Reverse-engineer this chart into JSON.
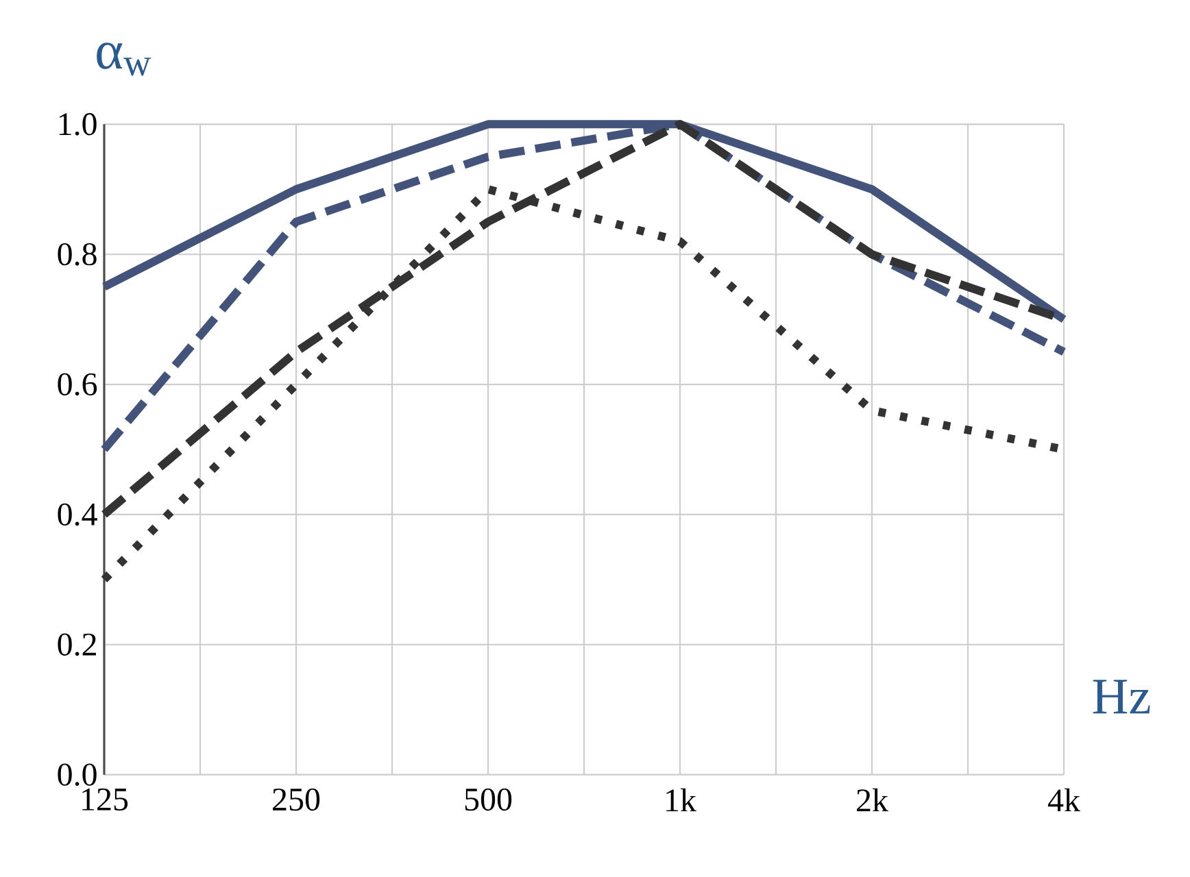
{
  "chart_data": {
    "type": "line",
    "xlabel": "Hz",
    "ylabel": "α$_{w}$",
    "categories": [
      "125",
      "250",
      "500",
      "1k",
      "2k",
      "4k"
    ],
    "series": [
      {
        "color": "#44537a",
        "line_style": "solid",
        "values": [
          0.75,
          0.9,
          1.0,
          1.0,
          0.9,
          0.7
        ]
      },
      {
        "color": "#44537a",
        "line_style": "dashed",
        "values": [
          0.5,
          0.85,
          0.95,
          1.0,
          0.8,
          0.65
        ]
      },
      {
        "color": "#333333",
        "line_style": "dashed",
        "values": [
          0.4,
          0.65,
          0.85,
          1.0,
          0.8,
          0.7
        ]
      },
      {
        "color": "#333333",
        "line_style": "dotted",
        "values": [
          0.3,
          0.6,
          0.9,
          0.82,
          0.56,
          0.5
        ]
      }
    ],
    "ylim": [
      0,
      1
    ],
    "yticks": [
      {
        "value": 0,
        "label": "0.0"
      },
      {
        "value": 0.2,
        "label": "0.2"
      },
      {
        "value": 0.4,
        "label": "0.4"
      },
      {
        "value": 0.6,
        "label": "0.6"
      },
      {
        "value": 0.8,
        "label": "0.8"
      },
      {
        "value": 1,
        "label": "1.0"
      }
    ],
    "grid": true,
    "marker": "none"
  }
}
